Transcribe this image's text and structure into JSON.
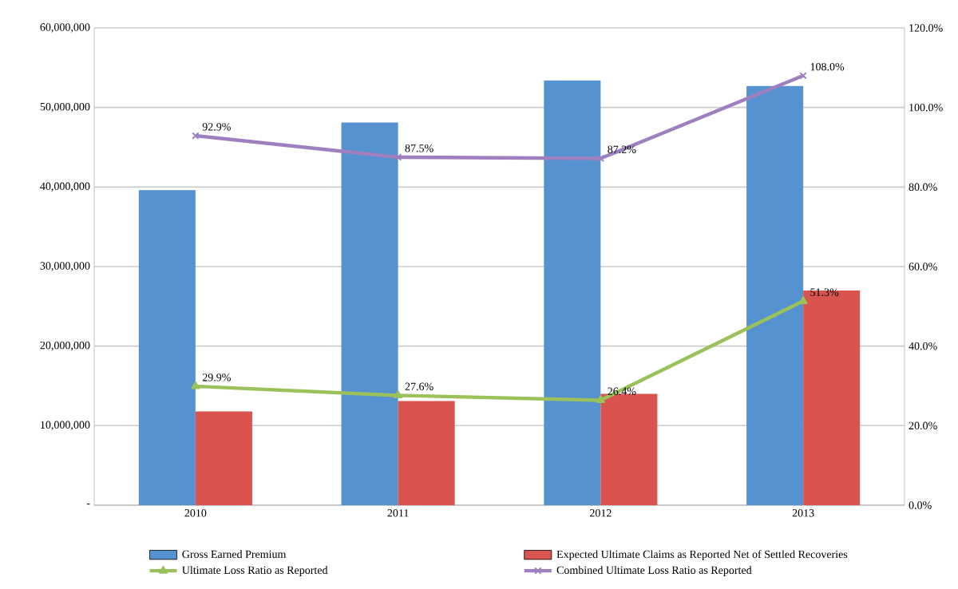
{
  "chart_data": {
    "type": "bar",
    "categories": [
      "2010",
      "2011",
      "2012",
      "2013"
    ],
    "series": [
      {
        "name": "Gross Earned Premium",
        "color": "#5592cf",
        "values": [
          39600000,
          48100000,
          53400000,
          52700000
        ]
      },
      {
        "name": "Expected Ultimate Claims as Reported Net of Settled Recoveries",
        "color": "#d9534f",
        "values": [
          11800000,
          13100000,
          14000000,
          27000000
        ]
      },
      {
        "name": "Ultimate Loss Ratio as Reported",
        "type": "line",
        "axis": "y2",
        "marker": "triangle",
        "color": "#9bc25a",
        "values": [
          29.9,
          27.6,
          26.4,
          51.3
        ],
        "value_labels": [
          "29.9%",
          "27.6%",
          "26.4%",
          "51.3%"
        ]
      },
      {
        "name": "Combined Ultimate Loss Ratio as Reported",
        "type": "line",
        "axis": "y2",
        "marker": "cross",
        "color": "#9e80bf",
        "values": [
          92.9,
          87.5,
          87.2,
          108.0
        ],
        "value_labels": [
          "92.9%",
          "87.5%",
          "87.2%",
          "108.0%"
        ]
      }
    ],
    "ylim": [
      0,
      60000000
    ],
    "yticks": [
      {
        "value": 0,
        "label": "-"
      },
      {
        "value": 10000000,
        "label": "10,000,000"
      },
      {
        "value": 20000000,
        "label": "20,000,000"
      },
      {
        "value": 30000000,
        "label": "30,000,000"
      },
      {
        "value": 40000000,
        "label": "40,000,000"
      },
      {
        "value": 50000000,
        "label": "50,000,000"
      },
      {
        "value": 60000000,
        "label": "60,000,000"
      }
    ],
    "y2lim": [
      0,
      120
    ],
    "y2ticks": [
      {
        "value": 0,
        "label": "0.0%"
      },
      {
        "value": 20,
        "label": "20.0%"
      },
      {
        "value": 40,
        "label": "40.0%"
      },
      {
        "value": 60,
        "label": "60.0%"
      },
      {
        "value": 80,
        "label": "80.0%"
      },
      {
        "value": 100,
        "label": "100.0%"
      },
      {
        "value": 120,
        "label": "120.0%"
      }
    ],
    "grid": "y",
    "legend": "bottom"
  }
}
